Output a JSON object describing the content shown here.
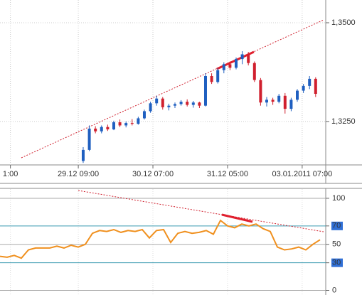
{
  "chart_data": [
    {
      "type": "candlestick",
      "open": [
        1.315,
        1.3178,
        1.3232,
        1.3225,
        1.3236,
        1.323,
        1.3248,
        1.324,
        1.3246,
        1.3244,
        1.3258,
        1.3276,
        1.3296,
        1.3308,
        1.3286,
        1.329,
        1.3294,
        1.33,
        1.3292,
        1.3298,
        1.329,
        1.3365,
        1.335,
        1.338,
        1.3395,
        1.3386,
        1.3408,
        1.342,
        1.3398,
        1.3355,
        1.3298,
        1.3305,
        1.33,
        1.3315,
        1.3282,
        1.3305,
        1.3328,
        1.334,
        1.3358
      ],
      "high": [
        1.3185,
        1.324,
        1.3238,
        1.324,
        1.3242,
        1.3252,
        1.3255,
        1.325,
        1.3256,
        1.3262,
        1.328,
        1.33,
        1.3315,
        1.3312,
        1.3295,
        1.3298,
        1.3304,
        1.3306,
        1.3302,
        1.33,
        1.3372,
        1.3372,
        1.3385,
        1.34,
        1.3402,
        1.3412,
        1.3428,
        1.3426,
        1.3402,
        1.336,
        1.3312,
        1.331,
        1.332,
        1.3322,
        1.331,
        1.3332,
        1.3345,
        1.3365,
        1.3362
      ],
      "low": [
        1.3145,
        1.3175,
        1.322,
        1.322,
        1.3226,
        1.3228,
        1.3236,
        1.3235,
        1.324,
        1.3242,
        1.3255,
        1.3272,
        1.329,
        1.328,
        1.3278,
        1.3284,
        1.329,
        1.3288,
        1.3285,
        1.3284,
        1.3288,
        1.3345,
        1.3346,
        1.3372,
        1.338,
        1.3382,
        1.3395,
        1.3392,
        1.335,
        1.329,
        1.3288,
        1.3292,
        1.3296,
        1.327,
        1.3276,
        1.33,
        1.3322,
        1.3332,
        1.3312
      ],
      "close": [
        1.3178,
        1.3232,
        1.3225,
        1.3236,
        1.323,
        1.3248,
        1.324,
        1.3246,
        1.3244,
        1.3258,
        1.3276,
        1.3296,
        1.3308,
        1.3286,
        1.329,
        1.3294,
        1.33,
        1.3292,
        1.3298,
        1.329,
        1.3365,
        1.335,
        1.338,
        1.3395,
        1.3386,
        1.3408,
        1.342,
        1.3398,
        1.3355,
        1.3298,
        1.3305,
        1.33,
        1.3315,
        1.3282,
        1.3305,
        1.3328,
        1.334,
        1.3358,
        1.332
      ],
      "up_color": "#1f5fc0",
      "down_color": "#d0202e",
      "ylim": [
        1.314,
        1.35576
      ],
      "yticks": [
        {
          "value": 1.35,
          "label": "1,3500"
        },
        {
          "value": 1.325,
          "label": "1,3250"
        }
      ],
      "xlim": [
        -13.6,
        39.65
      ],
      "xticks": [
        {
          "value": -11.9,
          "label": "1:00"
        },
        {
          "value": -0.8,
          "label": "29.12 09:00"
        },
        {
          "value": 11.4,
          "label": "30.12 07:00"
        },
        {
          "value": 23.6,
          "label": "31.12 05:00"
        },
        {
          "value": 35.8,
          "label": "03.01.2011 07:00"
        }
      ],
      "grid": true
    },
    {
      "type": "line",
      "values": [
        37,
        36,
        38,
        35,
        44,
        46,
        46,
        46,
        48,
        46,
        49,
        47,
        50,
        62,
        65,
        64,
        66,
        63,
        65,
        64,
        66,
        57,
        65,
        66,
        52,
        62,
        64,
        62,
        63,
        65,
        61,
        76,
        70,
        68,
        72,
        70,
        72,
        67,
        64,
        47,
        44,
        45,
        47,
        44,
        50,
        55
      ],
      "color": "#f0901e",
      "ylim": [
        -5,
        110
      ],
      "yticks": [
        0,
        30,
        50,
        70,
        100
      ],
      "levels": [
        70,
        30
      ],
      "level_color": "#3a9ab0",
      "grid": true
    }
  ]
}
